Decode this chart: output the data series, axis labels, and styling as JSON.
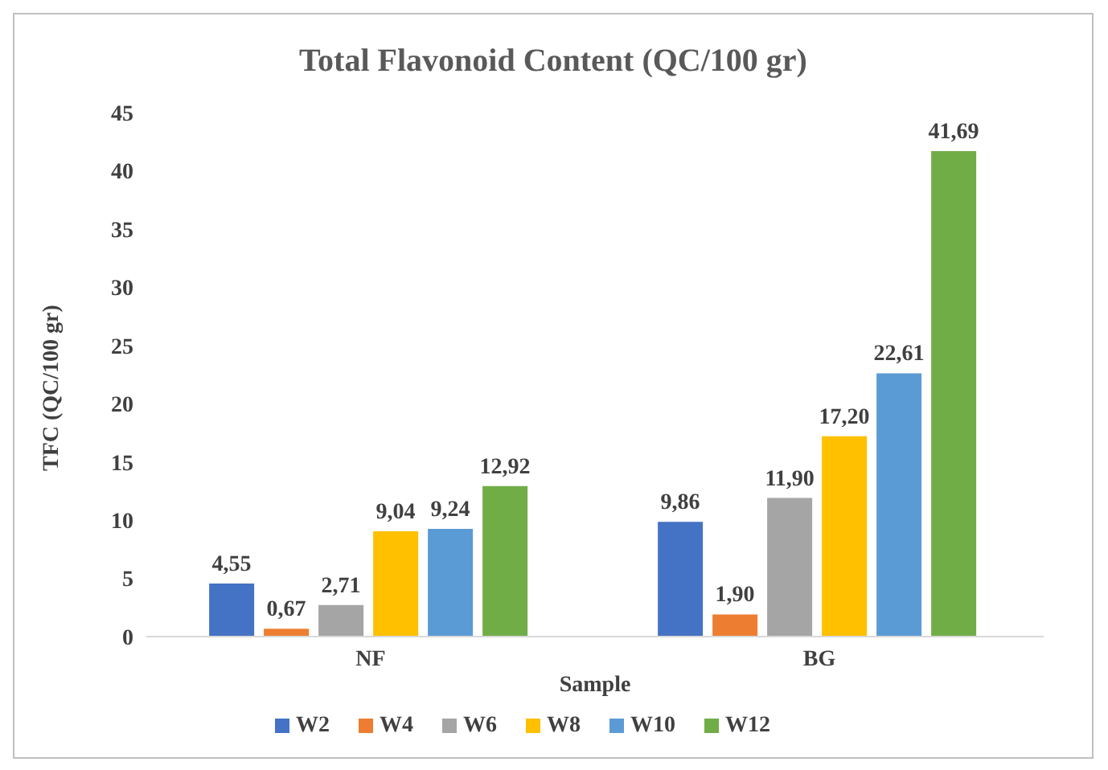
{
  "chart_data": {
    "type": "bar",
    "title": "Total Flavonoid Content (QC/100 gr)",
    "xlabel": "Sample",
    "ylabel": "TFC (QC/100 gr)",
    "categories": [
      "NF",
      "BG"
    ],
    "series": [
      {
        "name": "W2",
        "color": "#4472c4",
        "values": [
          4.55,
          9.86
        ],
        "value_labels": [
          "4,55",
          "9,86"
        ]
      },
      {
        "name": "W4",
        "color": "#ed7d31",
        "values": [
          0.67,
          1.9
        ],
        "value_labels": [
          "0,67",
          "1,90"
        ]
      },
      {
        "name": "W6",
        "color": "#a5a5a5",
        "values": [
          2.71,
          11.9
        ],
        "value_labels": [
          "2,71",
          "11,90"
        ]
      },
      {
        "name": "W8",
        "color": "#ffc000",
        "values": [
          9.04,
          17.2
        ],
        "value_labels": [
          "9,04",
          "17,20"
        ]
      },
      {
        "name": "W10",
        "color": "#5b9bd5",
        "values": [
          9.24,
          22.61
        ],
        "value_labels": [
          "9,24",
          "22,61"
        ]
      },
      {
        "name": "W12",
        "color": "#70ad47",
        "values": [
          12.92,
          41.69
        ],
        "value_labels": [
          "12,92",
          "41,69"
        ]
      }
    ],
    "ylim": [
      0,
      45
    ],
    "yticks": [
      0,
      5,
      10,
      15,
      20,
      25,
      30,
      35,
      40,
      45
    ],
    "grid": false,
    "legend": "bottom"
  }
}
